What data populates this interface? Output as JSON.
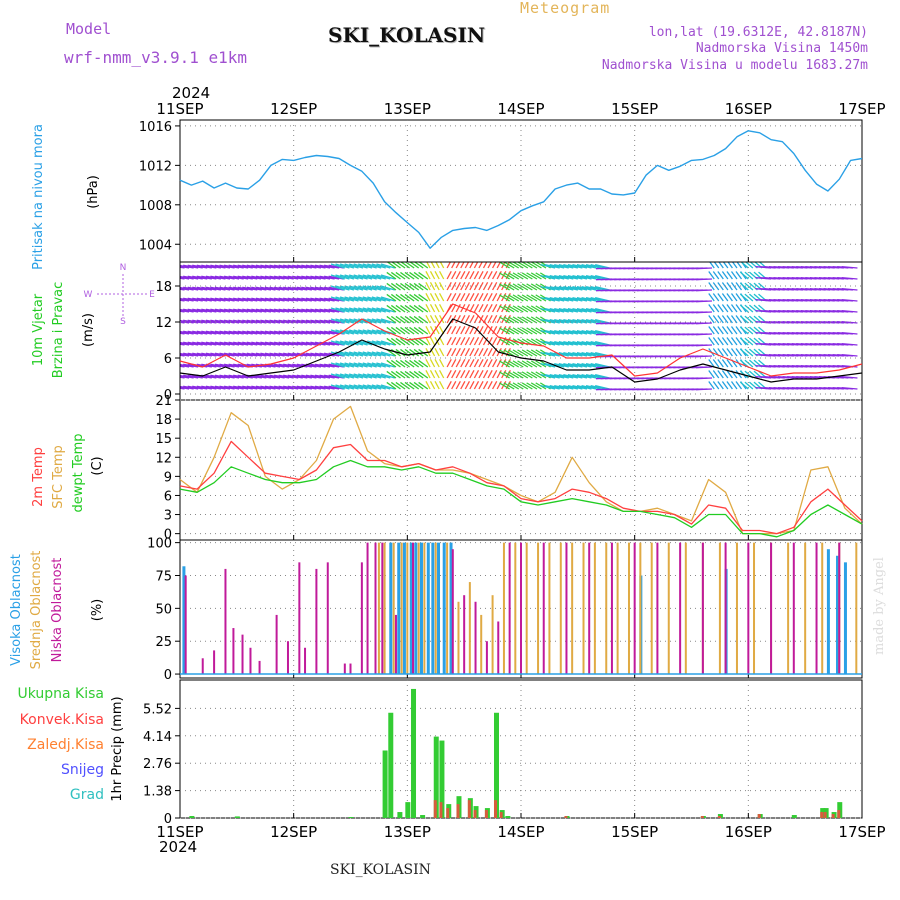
{
  "header": {
    "model_label": "Model",
    "model_value": "wrf-nmm_v3.9.1 e1km",
    "title": "SKI_KOLASIN",
    "meteogram": "Meteogram",
    "lonlat": "lon,lat (19.6312E, 42.8187N)",
    "elevation": "Nadmorska Visina 1450m",
    "model_elevation": "Nadmorska Visina u modelu 1683.27m",
    "year_top": "2024",
    "year_bottom": "2024",
    "footer": "SKI_KOLASIN",
    "watermark": "made by Angel"
  },
  "colors": {
    "pressure": "#2aa0e6",
    "wind_speed_line": "#000000",
    "gust": "#ff3333",
    "temp2m": "#ff4040",
    "sfc_temp": "#e0aa44",
    "dewpoint": "#22cc22",
    "high_cloud": "#2aa0e6",
    "mid_cloud": "#e0aa44",
    "low_cloud": "#c01a9a",
    "total_precip": "#33cc33",
    "conv_precip": "#ff4040",
    "frozen_precip": "#ff8030",
    "snow": "#5050ff",
    "hail": "#30c0c0",
    "wind_title": "#22cc22",
    "wind_compass": "#b060e0"
  },
  "dates": [
    "11SEP",
    "12SEP",
    "13SEP",
    "14SEP",
    "15SEP",
    "16SEP",
    "17SEP"
  ],
  "chart_data": [
    {
      "type": "line",
      "panel": "pressure",
      "ylabel_title": "Pritisak na nivou mora",
      "ylabel_unit": "(hPa)",
      "ylim": [
        1002.2,
        1016.6
      ],
      "yticks": [
        1004,
        1008,
        1012,
        1016
      ],
      "x": [
        0,
        0.1,
        0.2,
        0.3,
        0.4,
        0.5,
        0.6,
        0.7,
        0.8,
        0.9,
        1.0,
        1.1,
        1.2,
        1.3,
        1.4,
        1.5,
        1.6,
        1.7,
        1.8,
        1.9,
        2.0,
        2.1,
        2.2,
        2.3,
        2.4,
        2.5,
        2.6,
        2.7,
        2.8,
        2.9,
        3.0,
        3.1,
        3.2,
        3.3,
        3.4,
        3.5,
        3.6,
        3.7,
        3.8,
        3.9,
        4.0,
        4.1,
        4.2,
        4.3,
        4.4,
        4.5,
        4.6,
        4.7,
        4.8,
        4.9,
        5.0,
        5.1,
        5.2,
        5.3,
        5.4,
        5.5,
        5.6,
        5.7,
        5.8,
        5.9,
        6.0
      ],
      "series": [
        {
          "name": "",
          "values": [
            1010.5,
            1010.0,
            1010.4,
            1009.7,
            1010.2,
            1009.7,
            1009.6,
            1010.5,
            1012.0,
            1012.6,
            1012.5,
            1012.8,
            1013.0,
            1012.9,
            1012.7,
            1012.0,
            1011.4,
            1010.2,
            1008.3,
            1007.2,
            1006.2,
            1005.2,
            1003.6,
            1004.7,
            1005.4,
            1005.6,
            1005.7,
            1005.4,
            1005.9,
            1006.5,
            1007.4,
            1007.9,
            1008.3,
            1009.6,
            1010.0,
            1010.2,
            1009.6,
            1009.6,
            1009.1,
            1009.0,
            1009.2,
            1011.0,
            1012.0,
            1011.5,
            1011.9,
            1012.5,
            1012.6,
            1013.0,
            1013.7,
            1014.9,
            1015.5,
            1015.3,
            1014.6,
            1014.4,
            1013.2,
            1011.5,
            1010.1,
            1009.4,
            1010.6,
            1012.5,
            1012.7
          ]
        }
      ]
    },
    {
      "type": "line",
      "panel": "wind",
      "ylabel_title_1": "10m Vjetar",
      "ylabel_title_2": "Brzina i Pravac",
      "ylabel_unit": "(m/s)",
      "compass_n": "N",
      "compass_s": "S",
      "compass_e": "E",
      "compass_w": "W",
      "ylim": [
        -1,
        22
      ],
      "yticks": [
        0,
        6,
        12,
        18
      ],
      "x": [
        0,
        0.2,
        0.4,
        0.6,
        0.8,
        1.0,
        1.2,
        1.4,
        1.6,
        1.8,
        2.0,
        2.2,
        2.4,
        2.6,
        2.8,
        3.0,
        3.2,
        3.4,
        3.6,
        3.8,
        4.0,
        4.2,
        4.4,
        4.6,
        4.8,
        5.0,
        5.2,
        5.4,
        5.6,
        5.8,
        6.0
      ],
      "series": [
        {
          "name": "",
          "values": [
            3.5,
            3.0,
            4.5,
            3.0,
            3.5,
            4.0,
            5.5,
            7.0,
            9.0,
            7.5,
            6.5,
            7.0,
            12.5,
            11.0,
            7.0,
            6.0,
            5.5,
            4.0,
            4.0,
            4.5,
            2.0,
            2.5,
            4.0,
            5.0,
            4.0,
            3.0,
            2.0,
            2.5,
            2.5,
            3.0,
            3.5
          ]
        },
        {
          "name": "",
          "values": [
            5.5,
            4.5,
            6.5,
            4.5,
            5.0,
            6.0,
            8.0,
            10.0,
            12.5,
            10.5,
            9.0,
            9.5,
            15.0,
            13.5,
            9.5,
            8.5,
            8.0,
            6.0,
            6.0,
            6.5,
            3.0,
            3.5,
            6.0,
            7.5,
            6.0,
            4.5,
            3.0,
            3.5,
            3.5,
            4.0,
            5.0
          ]
        }
      ]
    },
    {
      "type": "line",
      "panel": "temperature",
      "ylabel_title_1": "2m Temp",
      "ylabel_title_2": "SFC Temp",
      "ylabel_title_3": "dewpt Temp",
      "ylabel_unit": "(C)",
      "ylim": [
        -1,
        21
      ],
      "yticks": [
        0,
        3,
        6,
        9,
        12,
        15,
        18,
        21
      ],
      "x": [
        0,
        0.15,
        0.3,
        0.45,
        0.6,
        0.75,
        0.9,
        1.05,
        1.2,
        1.35,
        1.5,
        1.65,
        1.8,
        1.95,
        2.1,
        2.25,
        2.4,
        2.55,
        2.7,
        2.85,
        3.0,
        3.15,
        3.3,
        3.45,
        3.6,
        3.75,
        3.9,
        4.05,
        4.2,
        4.35,
        4.5,
        4.65,
        4.8,
        4.95,
        5.1,
        5.25,
        5.4,
        5.55,
        5.7,
        5.85,
        6.0
      ],
      "series": [
        {
          "name": "",
          "values": [
            7.5,
            7.0,
            9.5,
            14.5,
            12.0,
            9.5,
            9.0,
            8.5,
            10.0,
            13.5,
            14.0,
            11.5,
            11.5,
            10.5,
            11.0,
            10.0,
            10.5,
            9.5,
            8.0,
            7.5,
            5.5,
            5.0,
            5.5,
            7.0,
            6.5,
            5.5,
            4.0,
            3.5,
            3.5,
            3.0,
            1.5,
            4.5,
            4.0,
            0.5,
            0.5,
            0.0,
            1.0,
            5.0,
            7.0,
            4.5,
            2.0
          ]
        },
        {
          "name": "",
          "values": [
            8.5,
            6.5,
            12.0,
            19.0,
            17.0,
            9.0,
            7.0,
            8.5,
            11.5,
            18.0,
            20.0,
            13.0,
            11.0,
            10.5,
            11.0,
            10.0,
            10.0,
            9.5,
            8.5,
            7.5,
            6.0,
            5.0,
            6.5,
            12.0,
            8.0,
            5.0,
            3.5,
            3.5,
            4.0,
            3.0,
            2.0,
            8.5,
            6.5,
            0.0,
            0.0,
            0.0,
            0.5,
            10.0,
            10.5,
            4.0,
            1.5
          ]
        },
        {
          "name": "",
          "values": [
            7.0,
            6.5,
            8.0,
            10.5,
            9.5,
            8.5,
            8.0,
            8.0,
            8.5,
            10.5,
            11.5,
            10.5,
            10.5,
            10.0,
            10.5,
            9.5,
            9.5,
            8.5,
            7.5,
            7.0,
            5.0,
            4.5,
            5.0,
            5.5,
            5.0,
            4.5,
            3.5,
            3.5,
            3.0,
            2.5,
            1.0,
            3.0,
            3.0,
            0.0,
            0.0,
            -0.5,
            0.5,
            3.0,
            4.5,
            3.0,
            1.5
          ]
        }
      ]
    },
    {
      "type": "bar",
      "panel": "cloud",
      "ylabel_title_1": "Visoka Oblacnost",
      "ylabel_title_2": "Srednja Oblacnost",
      "ylabel_title_3": "Niska Oblacnost",
      "ylabel_unit": "(%)",
      "ylim": [
        -3,
        102
      ],
      "yticks": [
        0,
        25,
        50,
        75,
        100
      ],
      "series": [
        {
          "name": "",
          "x": [
            0.03,
            1.85,
            1.92,
            1.97,
            2.03,
            2.07,
            2.12,
            2.18,
            2.22,
            2.27,
            2.32,
            2.38,
            4.05,
            4.8,
            5.7,
            5.78,
            5.85
          ],
          "values": [
            82,
            100,
            100,
            100,
            100,
            100,
            100,
            100,
            100,
            100,
            100,
            100,
            75,
            80,
            95,
            90,
            85
          ]
        },
        {
          "name": "",
          "x": [
            1.75,
            1.8,
            1.88,
            1.95,
            2.0,
            2.1,
            2.15,
            2.25,
            2.35,
            2.45,
            2.55,
            2.65,
            2.75,
            2.85,
            2.95,
            3.05,
            3.15,
            3.25,
            3.35,
            3.45,
            3.55,
            3.65,
            3.75,
            3.85,
            3.95,
            4.05,
            4.15,
            4.3,
            4.45,
            4.6,
            4.75,
            4.9,
            5.05,
            5.2,
            5.35,
            5.5,
            5.65,
            5.8,
            5.95
          ],
          "values": [
            100,
            100,
            100,
            100,
            100,
            100,
            100,
            100,
            100,
            55,
            70,
            45,
            60,
            100,
            100,
            100,
            100,
            100,
            100,
            100,
            100,
            100,
            100,
            100,
            100,
            100,
            100,
            100,
            100,
            100,
            100,
            100,
            100,
            100,
            100,
            100,
            100,
            100,
            100
          ]
        },
        {
          "name": "",
          "x": [
            0.05,
            0.2,
            0.3,
            0.4,
            0.47,
            0.55,
            0.62,
            0.7,
            0.85,
            0.95,
            1.05,
            1.1,
            1.2,
            1.3,
            1.45,
            1.5,
            1.6,
            1.65,
            1.72,
            1.78,
            1.9,
            2.05,
            2.4,
            2.5,
            2.6,
            2.7,
            2.8,
            2.9,
            3.0,
            3.2,
            3.4,
            3.6,
            3.8,
            4.0,
            4.2,
            4.4,
            4.6,
            4.8,
            5.0,
            5.2,
            5.4,
            5.6,
            5.8
          ],
          "values": [
            75,
            12,
            18,
            80,
            35,
            30,
            20,
            10,
            45,
            25,
            85,
            20,
            80,
            85,
            8,
            8,
            85,
            100,
            100,
            100,
            45,
            100,
            95,
            60,
            55,
            25,
            40,
            100,
            100,
            100,
            100,
            100,
            100,
            100,
            100,
            100,
            100,
            100,
            100,
            100,
            100,
            100,
            100
          ]
        }
      ]
    },
    {
      "type": "bar",
      "panel": "precip",
      "ylabel_unit": "1hr Precip (mm)",
      "legend": [
        "Ukupna Kisa",
        "Konvek.Kisa",
        "Zaledj.Kisa",
        "Snijeg",
        "Grad"
      ],
      "ylim": [
        0,
        6.95
      ],
      "yticks": [
        0,
        1.38,
        2.76,
        4.14,
        5.52
      ],
      "yticklabels": [
        "0",
        "1.38",
        "2.76",
        "4.14",
        "5.52"
      ],
      "x": [
        0.1,
        0.5,
        1.5,
        1.8,
        1.85,
        1.93,
        2.0,
        2.05,
        2.13,
        2.25,
        2.3,
        2.36,
        2.45,
        2.55,
        2.6,
        2.7,
        2.78,
        2.83,
        2.88,
        3.4,
        4.6,
        4.75,
        5.1,
        5.4,
        5.65,
        5.68,
        5.75,
        5.8
      ],
      "series": [
        {
          "name": "",
          "values": [
            0.1,
            0.08,
            0.05,
            3.4,
            5.3,
            0.3,
            0.8,
            6.5,
            0.15,
            4.1,
            3.9,
            0.7,
            1.1,
            1.0,
            0.6,
            0.5,
            5.3,
            0.4,
            0.1,
            0.1,
            0.1,
            0.2,
            0.2,
            0.15,
            0.5,
            0.5,
            0.3,
            0.8
          ]
        },
        {
          "name": "",
          "values": [
            0,
            0,
            0,
            0,
            0,
            0,
            0,
            0,
            0,
            0.9,
            0.8,
            0.5,
            0.7,
            0.9,
            0.4,
            0.4,
            0.9,
            0.3,
            0,
            0.1,
            0.1,
            0.1,
            0.2,
            0,
            0.3,
            0.3,
            0.2,
            0.4
          ]
        }
      ]
    }
  ]
}
